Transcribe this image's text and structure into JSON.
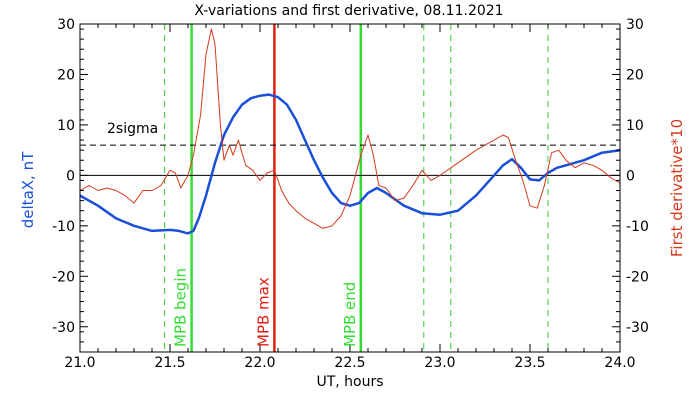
{
  "chart_data": {
    "type": "line",
    "title": "X-variations and first derivative, 08.11.2021",
    "xlabel": "UT, hours",
    "ylabel_left": "deltaX, nT",
    "ylabel_right": "First derivative*10",
    "xlim": [
      21.0,
      24.0
    ],
    "ylim": [
      -35,
      30
    ],
    "x_ticks": [
      "21.0",
      "21.5",
      "22.0",
      "22.5",
      "23.0",
      "23.5",
      "24.0"
    ],
    "y_ticks": [
      "30",
      "20",
      "10",
      "0",
      "-10",
      "-20",
      "-30"
    ],
    "colors": {
      "deltaX": "#1a4fd8",
      "derivative": "#d43a1a",
      "mpb_begin": "#33dd33",
      "mpb_max": "#e02010",
      "mpb_end": "#33dd33",
      "dashed": "#33cc33",
      "axis": "#000000"
    },
    "threshold": {
      "label": "2sigma",
      "y": 6
    },
    "zero_line": 0,
    "markers": [
      {
        "label": "MPB begin",
        "x": 21.62,
        "color": "#33dd33"
      },
      {
        "label": "MPB max",
        "x": 22.08,
        "color": "#e02010"
      },
      {
        "label": "MPB end",
        "x": 22.56,
        "color": "#33dd33"
      }
    ],
    "dashed_markers": [
      21.47,
      22.91,
      23.06,
      23.6
    ],
    "series": [
      {
        "key": "deltaX",
        "x": [
          21.0,
          21.1,
          21.2,
          21.3,
          21.4,
          21.5,
          21.55,
          21.6,
          21.63,
          21.66,
          21.7,
          21.75,
          21.8,
          21.85,
          21.9,
          21.95,
          22.0,
          22.05,
          22.1,
          22.15,
          22.2,
          22.25,
          22.3,
          22.35,
          22.4,
          22.45,
          22.5,
          22.55,
          22.6,
          22.65,
          22.7,
          22.8,
          22.9,
          23.0,
          23.1,
          23.2,
          23.3,
          23.35,
          23.4,
          23.45,
          23.5,
          23.55,
          23.6,
          23.65,
          23.7,
          23.8,
          23.9,
          24.0
        ],
        "values": [
          -4,
          -6,
          -8.5,
          -10,
          -11,
          -10.8,
          -11,
          -11.5,
          -11,
          -8.5,
          -4,
          2.5,
          8,
          11.5,
          14,
          15.3,
          15.8,
          16,
          15.5,
          14,
          11,
          7,
          3,
          -0.5,
          -3.5,
          -5.5,
          -6,
          -5.5,
          -3.5,
          -2.5,
          -3.5,
          -6,
          -7.5,
          -7.8,
          -7,
          -4,
          0,
          2,
          3.2,
          1.5,
          -0.8,
          -1,
          0.5,
          1.5,
          2,
          3,
          4.5,
          5
        ]
      },
      {
        "key": "derivative",
        "x": [
          21.0,
          21.05,
          21.1,
          21.15,
          21.2,
          21.25,
          21.3,
          21.35,
          21.4,
          21.45,
          21.5,
          21.53,
          21.56,
          21.6,
          21.63,
          21.67,
          21.7,
          21.73,
          21.75,
          21.78,
          21.8,
          21.83,
          21.85,
          21.88,
          21.92,
          21.96,
          22.0,
          22.04,
          22.08,
          22.12,
          22.16,
          22.2,
          22.25,
          22.3,
          22.35,
          22.4,
          22.45,
          22.5,
          22.53,
          22.56,
          22.6,
          22.63,
          22.66,
          22.7,
          22.75,
          22.8,
          22.85,
          22.9,
          22.95,
          23.0,
          23.1,
          23.2,
          23.3,
          23.35,
          23.38,
          23.42,
          23.46,
          23.5,
          23.54,
          23.58,
          23.62,
          23.66,
          23.7,
          23.75,
          23.8,
          23.85,
          23.9,
          23.95,
          24.0
        ],
        "values": [
          -3,
          -2,
          -3,
          -2.5,
          -3,
          -4,
          -5.5,
          -3,
          -3,
          -2,
          1,
          0.5,
          -2.5,
          0,
          4,
          12,
          24,
          29,
          26,
          10,
          3,
          6,
          4,
          7,
          2,
          1,
          -1,
          0.5,
          1,
          -3,
          -5.5,
          -7,
          -8.5,
          -9.5,
          -10.5,
          -10,
          -8,
          -4,
          0,
          4,
          8,
          4,
          -2,
          -2.5,
          -5,
          -4.5,
          -2,
          1,
          -1,
          0,
          2.5,
          5,
          7,
          8,
          7.5,
          3,
          -1,
          -6,
          -6.5,
          -2,
          4.5,
          5,
          3,
          1.5,
          2.5,
          2,
          1,
          -0.5,
          -1.5
        ]
      }
    ]
  }
}
